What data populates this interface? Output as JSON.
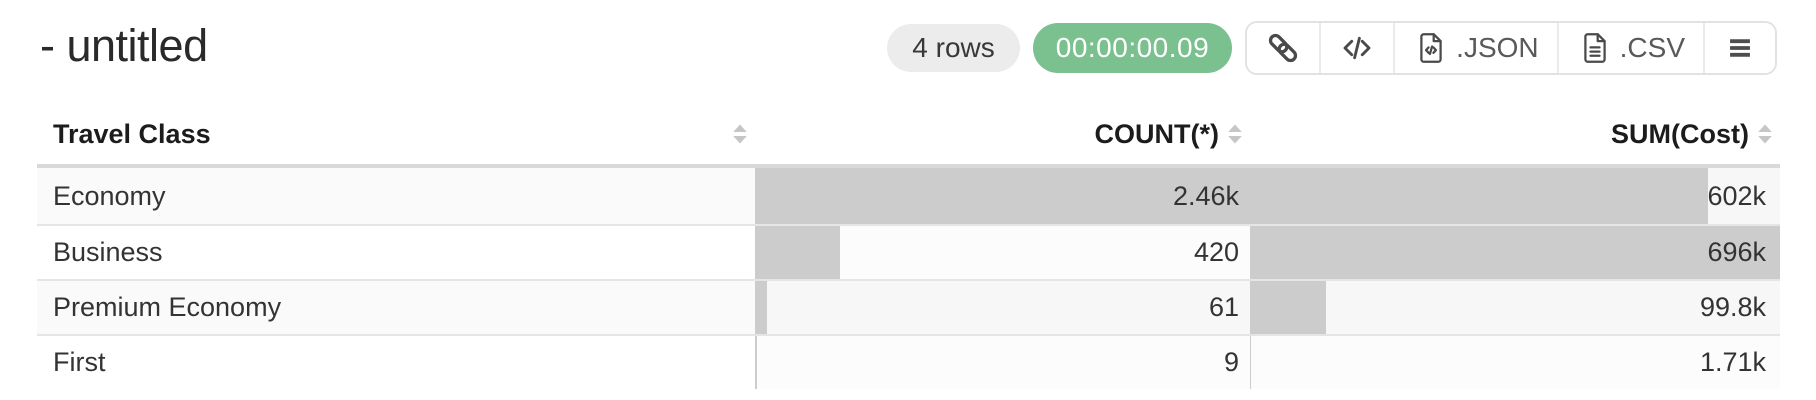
{
  "page": {
    "title": "- untitled"
  },
  "toolbar": {
    "rows_badge": "4 rows",
    "timer_badge": "00:00:00.09",
    "export_json_label": ".JSON",
    "export_csv_label": ".CSV",
    "icons": [
      "link-icon",
      "code-icon",
      "file-code-icon",
      "file-text-icon",
      "menu-icon"
    ]
  },
  "colors": {
    "timer_green": "#7bc08f",
    "rows_badge_gray": "#ececec",
    "bar_gray": "#cccccc",
    "stripe_row": "#fafafa"
  },
  "table": {
    "columns": [
      {
        "label": "Travel Class",
        "align": "left",
        "sortable": true
      },
      {
        "label": "COUNT(*)",
        "align": "right",
        "sortable": true
      },
      {
        "label": "SUM(Cost)",
        "align": "right",
        "sortable": true
      }
    ],
    "rows": [
      {
        "travel_class": "Economy",
        "count": "2.46k",
        "sum": "602k",
        "count_pct": 100,
        "sum_pct": 86.5
      },
      {
        "travel_class": "Business",
        "count": "420",
        "sum": "696k",
        "count_pct": 17.1,
        "sum_pct": 100
      },
      {
        "travel_class": "Premium Economy",
        "count": "61",
        "sum": "99.8k",
        "count_pct": 2.5,
        "sum_pct": 14.3
      },
      {
        "travel_class": "First",
        "count": "9",
        "sum": "1.71k",
        "count_pct": 0.37,
        "sum_pct": 0.25
      }
    ]
  }
}
